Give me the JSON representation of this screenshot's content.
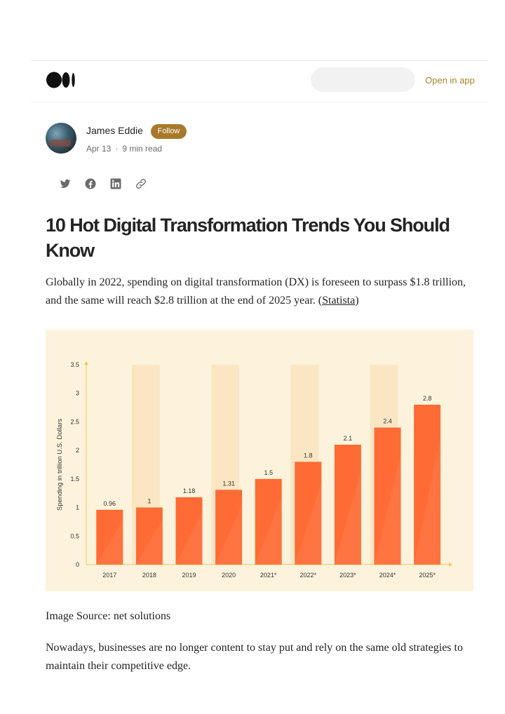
{
  "header": {
    "logo_icon": "medium-logo-icon",
    "open_in_app_label": "Open in app"
  },
  "author": {
    "name": "James Eddie",
    "follow_label": "Follow",
    "date": "Apr 13",
    "separator": "·",
    "read_time": "9 min read"
  },
  "share": {
    "icons": [
      "twitter-icon",
      "facebook-icon",
      "linkedin-icon",
      "link-icon"
    ]
  },
  "article": {
    "title": "10 Hot Digital Transformation Trends You Should Know",
    "intro_text": "Globally in 2022, spending on digital transformation (DX) is foreseen to surpass $1.8 trillion, and the same will reach $2.8 trillion at the end of 2025 year. (",
    "intro_link": "Statista",
    "intro_end": ")",
    "image_caption": "Image Source: net solutions",
    "paragraph_2": "Nowadays, businesses are no longer content to stay put and rely on the same old strategies to maintain their competitive edge."
  },
  "colors": {
    "bar": "#ff6b35",
    "bar_shade": "#ff8757",
    "column_highlight": "#fbe6c4",
    "chart_bg": "#fdf3dc",
    "axis": "#f5c45e",
    "follow_button": "#a8782a",
    "accent_text": "#a8842d"
  },
  "chart_data": {
    "type": "bar",
    "title": "",
    "xlabel": "",
    "ylabel": "Spending in trillion U.S. Dollars",
    "categories": [
      "2017",
      "2018",
      "2019",
      "2020",
      "2021*",
      "2022*",
      "2023*",
      "2024*",
      "2025*"
    ],
    "values": [
      0.96,
      1,
      1.18,
      1.31,
      1.5,
      1.8,
      2.1,
      2.4,
      2.8
    ],
    "value_labels": [
      "0.96",
      "1",
      "1.18",
      "1.31",
      "1.5",
      "1.8",
      "2.1",
      "2.4",
      "2.8"
    ],
    "ylim": [
      0,
      3.5
    ],
    "yticks": [
      "0",
      "0.5",
      "1",
      "1.5",
      "2",
      "2.5",
      "3",
      "3.5"
    ],
    "grid": false
  }
}
